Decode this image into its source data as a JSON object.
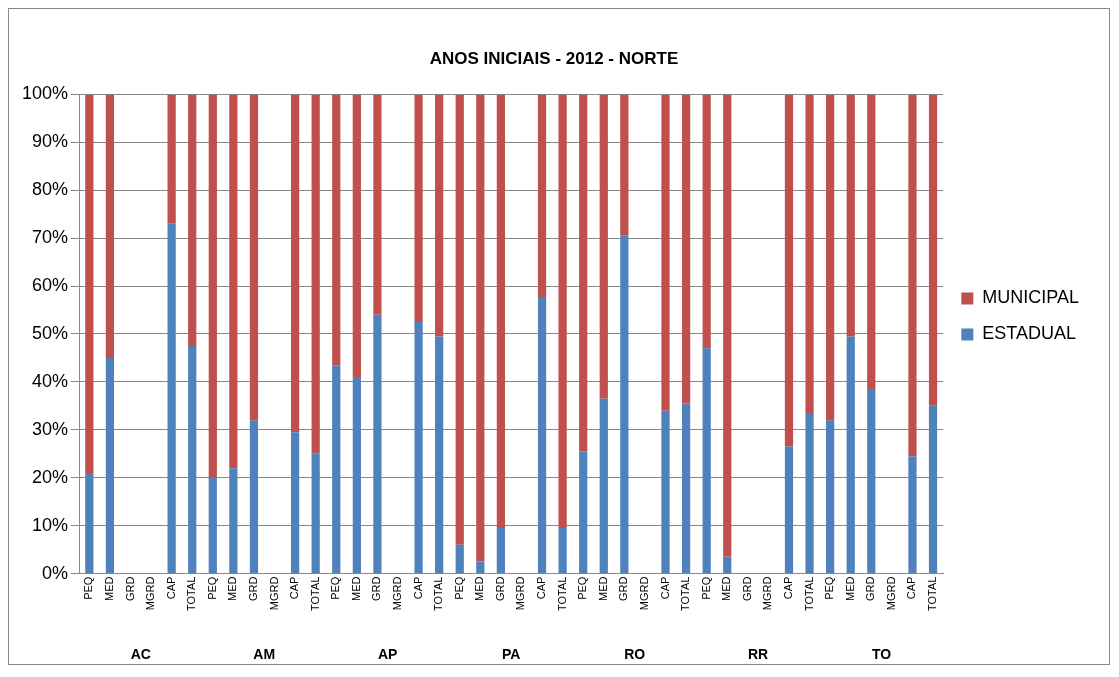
{
  "chart_data": {
    "type": "bar",
    "title": "ANOS INICIAIS - 2012 - NORTE",
    "stacked": true,
    "categories": [
      "PEQ",
      "MED",
      "GRD",
      "MGRD",
      "CAP",
      "TOTAL",
      "PEQ",
      "MED",
      "GRD",
      "MGRD",
      "CAP",
      "TOTAL",
      "PEQ",
      "MED",
      "GRD",
      "MGRD",
      "CAP",
      "TOTAL",
      "PEQ",
      "MED",
      "GRD",
      "MGRD",
      "CAP",
      "TOTAL",
      "PEQ",
      "MED",
      "GRD",
      "MGRD",
      "CAP",
      "TOTAL",
      "PEQ",
      "MED",
      "GRD",
      "MGRD",
      "CAP",
      "TOTAL",
      "PEQ",
      "MED",
      "GRD",
      "MGRD",
      "CAP",
      "TOTAL"
    ],
    "series": [
      {
        "name": "ESTADUAL",
        "color": "#4f81bd",
        "values": [
          21,
          45,
          null,
          null,
          73,
          47.5,
          20,
          22,
          32,
          null,
          29.5,
          25,
          43.5,
          41,
          54,
          null,
          52.5,
          49.5,
          6,
          2.5,
          9.5,
          null,
          57.5,
          9.5,
          25.5,
          36.5,
          70.5,
          null,
          34,
          35.5,
          47,
          3.5,
          null,
          null,
          26.5,
          33.5,
          32,
          49.5,
          38.5,
          null,
          24.5,
          35
        ]
      },
      {
        "name": "MUNICIPAL",
        "color": "#c0504d",
        "values": [
          79,
          55,
          null,
          null,
          27,
          52.5,
          80,
          78,
          68,
          null,
          70.5,
          75,
          56.5,
          59,
          46,
          null,
          47.5,
          50.5,
          94,
          97.5,
          90.5,
          null,
          42.5,
          90.5,
          74.5,
          63.5,
          29.5,
          null,
          66,
          64.5,
          53,
          96.5,
          null,
          null,
          73.5,
          66.5,
          68,
          50.5,
          61.5,
          null,
          75.5,
          65
        ]
      }
    ],
    "annotations": [
      "AC",
      "AM",
      "AP",
      "PA",
      "RO",
      "RR",
      "TO"
    ],
    "ylim": [
      0,
      100
    ],
    "yticks": [
      {
        "value": 0,
        "label": "0%"
      },
      {
        "value": 10,
        "label": "10%"
      },
      {
        "value": 20,
        "label": "20%"
      },
      {
        "value": 30,
        "label": "30%"
      },
      {
        "value": 40,
        "label": "40%"
      },
      {
        "value": 50,
        "label": "50%"
      },
      {
        "value": 60,
        "label": "60%"
      },
      {
        "value": 70,
        "label": "70%"
      },
      {
        "value": 80,
        "label": "80%"
      },
      {
        "value": 90,
        "label": "90%"
      },
      {
        "value": 100,
        "label": "100%"
      }
    ],
    "grid": "y",
    "legend": "right"
  }
}
